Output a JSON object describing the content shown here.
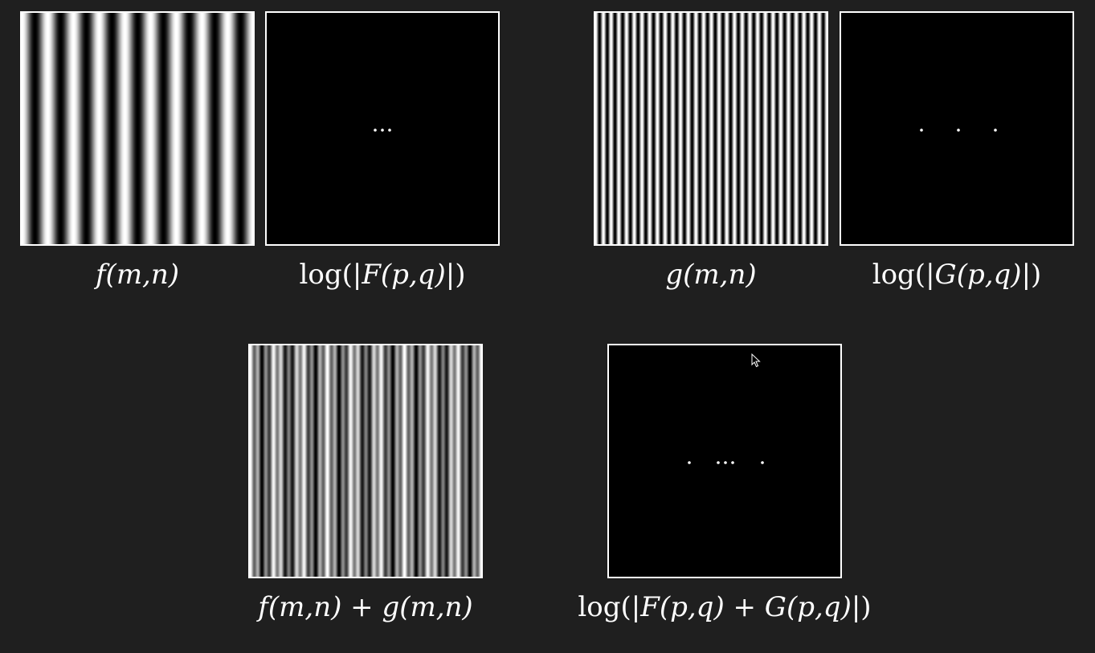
{
  "panels": {
    "f": {
      "caption_fn": "f",
      "caption_args": "(m,n)",
      "cycles": 9
    },
    "F": {
      "caption_pre": "log(|",
      "caption_fn": "F",
      "caption_args": "(p,q)",
      "caption_post": "|)"
    },
    "g": {
      "caption_fn": "g",
      "caption_args": "(m,n)",
      "cycles": 30
    },
    "G": {
      "caption_pre": "log(|",
      "caption_fn": "G",
      "caption_args": "(p,q)",
      "caption_post": "|)"
    },
    "fg": {
      "caption_text": "f(m,n) + g(m,n)"
    },
    "FG": {
      "caption_pre": "log(|",
      "caption_mid": "F(p,q) + G(p,q)",
      "caption_post": "|)"
    }
  },
  "colors": {
    "background": "#1f1f1f",
    "panel_border": "#ffffff",
    "panel_fill": "#000000"
  }
}
